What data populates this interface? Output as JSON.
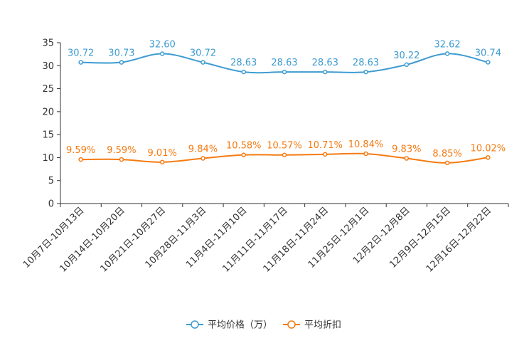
{
  "chart_data": {
    "type": "line",
    "categories": [
      "10月7日-10月13日",
      "10月14日-10月20日",
      "10月21日-10月27日",
      "10月28日-11月3日",
      "11月4日-11月10日",
      "11月11日-11月17日",
      "11月18日-11月24日",
      "11月25日-12月1日",
      "12月2日-12月8日",
      "12月9日-12月15日",
      "12月16日-12月22日"
    ],
    "series": [
      {
        "name": "平均价格（万）",
        "color": "#3d9bd1",
        "values": [
          30.72,
          30.73,
          32.6,
          30.72,
          28.63,
          28.63,
          28.63,
          28.63,
          30.22,
          32.62,
          30.74
        ],
        "labels": [
          "30.72",
          "30.73",
          "32.60",
          "30.72",
          "28.63",
          "28.63",
          "28.63",
          "28.63",
          "30.22",
          "32.62",
          "30.74"
        ]
      },
      {
        "name": "平均折扣",
        "color": "#f57b12",
        "values": [
          9.59,
          9.59,
          9.01,
          9.84,
          10.58,
          10.57,
          10.71,
          10.84,
          9.83,
          8.85,
          10.02
        ],
        "labels": [
          "9.59%",
          "9.59%",
          "9.01%",
          "9.84%",
          "10.58%",
          "10.57%",
          "10.71%",
          "10.84%",
          "9.83%",
          "8.85%",
          "10.02%"
        ]
      }
    ],
    "ylim": [
      0,
      35
    ],
    "yticks": [
      "0",
      "5",
      "10",
      "15",
      "20",
      "25",
      "30",
      "35"
    ],
    "ytick_values": [
      0,
      5,
      10,
      15,
      20,
      25,
      30,
      35
    ],
    "legend": "bottom-center",
    "grid": false
  }
}
